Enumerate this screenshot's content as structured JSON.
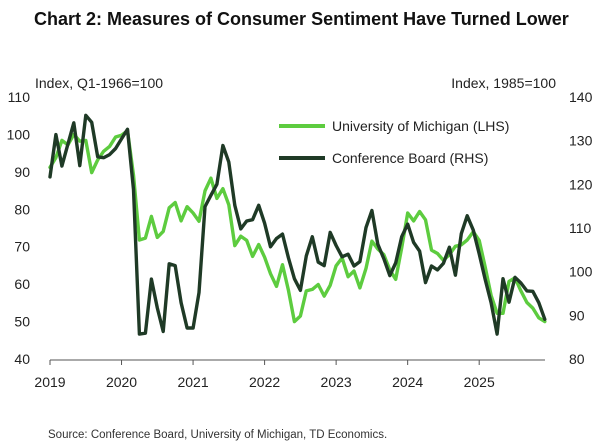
{
  "title": "Chart 2: Measures of Consumer Sentiment Have Turned Lower",
  "left_axis_unit": "Index, Q1-1966=100",
  "right_axis_unit": "Index, 1985=100",
  "source": "Source: Conference Board, University of Michigan, TD Economics.",
  "colors": {
    "michigan": "#5dcc3f",
    "conference": "#1f3a26"
  },
  "chart_data": {
    "type": "line",
    "title": "Chart 2: Measures of Consumer Sentiment Have Turned Lower",
    "x_ticks": [
      2019,
      2020,
      2021,
      2022,
      2023,
      2024,
      2025
    ],
    "xlim": [
      2019.0,
      2025.92
    ],
    "y_left_ticks": [
      40,
      50,
      60,
      70,
      80,
      90,
      100,
      110
    ],
    "ylim_left": [
      40,
      110
    ],
    "y_right_ticks": [
      80,
      90,
      100,
      110,
      120,
      130,
      140
    ],
    "ylim_right": [
      80,
      140
    ],
    "legend": {
      "placement": "top-right"
    },
    "series": [
      {
        "name": "University of Michigan (LHS)",
        "axis": "left",
        "color": "#5dcc3f",
        "x": [
          2019.0,
          2019.083,
          2019.167,
          2019.25,
          2019.333,
          2019.417,
          2019.5,
          2019.583,
          2019.667,
          2019.75,
          2019.833,
          2019.917,
          2020.0,
          2020.083,
          2020.167,
          2020.25,
          2020.333,
          2020.417,
          2020.5,
          2020.583,
          2020.667,
          2020.75,
          2020.833,
          2020.917,
          2021.0,
          2021.083,
          2021.167,
          2021.25,
          2021.333,
          2021.417,
          2021.5,
          2021.583,
          2021.667,
          2021.75,
          2021.833,
          2021.917,
          2022.0,
          2022.083,
          2022.167,
          2022.25,
          2022.333,
          2022.417,
          2022.5,
          2022.583,
          2022.667,
          2022.75,
          2022.833,
          2022.917,
          2023.0,
          2023.083,
          2023.167,
          2023.25,
          2023.333,
          2023.417,
          2023.5,
          2023.583,
          2023.667,
          2023.75,
          2023.833,
          2023.917,
          2024.0,
          2024.083,
          2024.167,
          2024.25,
          2024.333,
          2024.417,
          2024.5,
          2024.583,
          2024.667,
          2024.75,
          2024.833,
          2024.917,
          2025.0,
          2025.083,
          2025.167,
          2025.25,
          2025.333,
          2025.417,
          2025.5,
          2025.583,
          2025.667,
          2025.75,
          2025.833,
          2025.917
        ],
        "values": [
          91.2,
          93.8,
          98.4,
          97.2,
          100.0,
          98.2,
          98.4,
          89.8,
          93.2,
          95.5,
          96.8,
          99.3,
          99.8,
          101.0,
          89.1,
          71.8,
          72.3,
          78.1,
          72.5,
          74.1,
          80.4,
          81.8,
          76.9,
          80.7,
          79.0,
          76.8,
          84.9,
          88.3,
          82.9,
          85.5,
          81.2,
          70.3,
          72.8,
          71.7,
          67.4,
          70.6,
          67.2,
          62.8,
          59.4,
          65.2,
          58.4,
          50.0,
          51.5,
          58.2,
          58.6,
          59.9,
          56.8,
          59.7,
          64.9,
          67.0,
          62.0,
          63.5,
          59.0,
          64.2,
          71.5,
          69.4,
          67.9,
          63.8,
          61.3,
          69.7,
          79.0,
          76.9,
          79.4,
          77.2,
          69.1,
          68.2,
          66.4,
          67.9,
          70.1,
          70.5,
          71.8,
          74.0,
          71.7,
          64.7,
          57.0,
          52.2,
          52.2,
          60.7,
          61.7,
          58.2,
          55.1,
          53.6,
          51.0,
          50.0
        ]
      },
      {
        "name": "Conference Board (RHS)",
        "axis": "right",
        "color": "#1f3a26",
        "x": [
          2019.0,
          2019.083,
          2019.167,
          2019.25,
          2019.333,
          2019.417,
          2019.5,
          2019.583,
          2019.667,
          2019.75,
          2019.833,
          2019.917,
          2020.0,
          2020.083,
          2020.167,
          2020.25,
          2020.333,
          2020.417,
          2020.5,
          2020.583,
          2020.667,
          2020.75,
          2020.833,
          2020.917,
          2021.0,
          2021.083,
          2021.167,
          2021.25,
          2021.333,
          2021.417,
          2021.5,
          2021.583,
          2021.667,
          2021.75,
          2021.833,
          2021.917,
          2022.0,
          2022.083,
          2022.167,
          2022.25,
          2022.333,
          2022.417,
          2022.5,
          2022.583,
          2022.667,
          2022.75,
          2022.833,
          2022.917,
          2023.0,
          2023.083,
          2023.167,
          2023.25,
          2023.333,
          2023.417,
          2023.5,
          2023.583,
          2023.667,
          2023.75,
          2023.833,
          2023.917,
          2024.0,
          2024.083,
          2024.167,
          2024.25,
          2024.333,
          2024.417,
          2024.5,
          2024.583,
          2024.667,
          2024.75,
          2024.833,
          2024.917,
          2025.0,
          2025.083,
          2025.167,
          2025.25,
          2025.333,
          2025.417,
          2025.5,
          2025.583,
          2025.667,
          2025.75,
          2025.833,
          2025.917
        ],
        "values": [
          121.7,
          131.4,
          124.2,
          129.2,
          134.1,
          124.3,
          135.8,
          134.2,
          126.3,
          126.1,
          126.8,
          128.2,
          130.4,
          132.6,
          118.8,
          85.7,
          85.9,
          98.3,
          91.7,
          86.3,
          101.8,
          101.4,
          92.9,
          87.1,
          87.1,
          95.2,
          114.9,
          117.5,
          120.0,
          128.9,
          125.1,
          115.2,
          109.8,
          111.6,
          111.9,
          115.2,
          111.1,
          105.7,
          107.6,
          108.6,
          103.2,
          98.4,
          95.7,
          103.6,
          108.0,
          102.2,
          101.4,
          109.0,
          106.0,
          103.4,
          104.0,
          101.3,
          102.3,
          110.1,
          114.0,
          106.3,
          103.0,
          99.1,
          102.0,
          108.0,
          110.9,
          106.7,
          104.7,
          97.5,
          101.3,
          100.4,
          101.9,
          105.6,
          99.2,
          108.7,
          112.8,
          109.5,
          104.1,
          98.3,
          92.9,
          85.7,
          98.4,
          93.0,
          98.7,
          97.4,
          95.6,
          95.5,
          92.9,
          89.1
        ]
      }
    ]
  }
}
